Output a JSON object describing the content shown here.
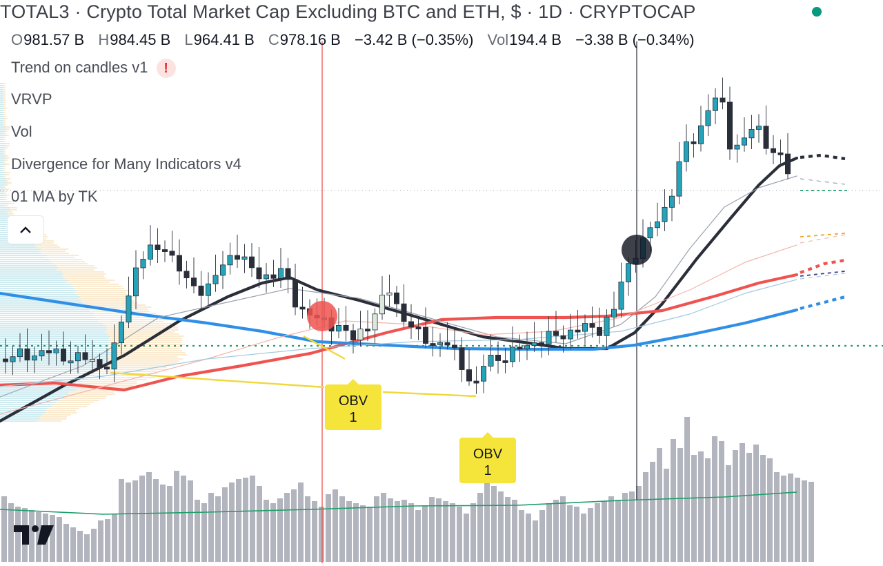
{
  "header": {
    "title": "TOTAL3 · Crypto Total Market Cap Excluding BTC and ETH, $ · 1D · CRYPTOCAP",
    "status_color": "#089981"
  },
  "ohlc": {
    "o_label": "O",
    "o_value": "981.57 B",
    "h_label": "H",
    "h_value": "984.45 B",
    "l_label": "L",
    "l_value": "964.41 B",
    "c_label": "C",
    "c_value": "978.16 B",
    "change": "−3.42 B (−0.35%)",
    "vol_label": "Vol",
    "vol_value": "194.4 B",
    "vol_change": "−3.38 B (−0.34%)"
  },
  "indicators": [
    {
      "label": "Trend on candles v1",
      "warning": "!"
    },
    {
      "label": "VRVP"
    },
    {
      "label": "Vol"
    },
    {
      "label": "Divergence for Many Indicators v4"
    },
    {
      "label": "01 MA by TK"
    }
  ],
  "collapse_icon": "chevron-up-icon",
  "obv_labels": [
    {
      "line1": "OBV",
      "line2": "1"
    },
    {
      "line1": "OBV",
      "line2": "1"
    }
  ],
  "logo": "tradingview-logo",
  "colors": {
    "up_candle": "#26a3b8",
    "down_candle": "#2a2e39",
    "ma_black": "#2a2e39",
    "ma_red": "#ef5350",
    "ma_blue": "#2f8fe6",
    "divergence_line": "#f5e43a",
    "volume_bar": "#b2b5be",
    "volume_ma": "#1f9e6a"
  }
}
